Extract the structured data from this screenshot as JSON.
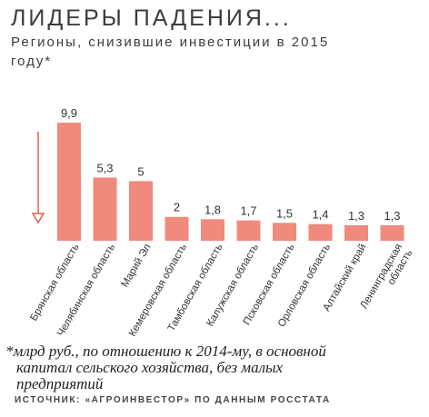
{
  "title": "ЛИДЕРЫ ПАДЕНИЯ...",
  "subtitle": "Регионы, снизившие инвестиции в 2015 году*",
  "footnote": {
    "line1": "*млрд руб., по отношению к 2014-му, в основной",
    "line2": "капитал  сельского хозяйства, без малых",
    "line3": "предприятий"
  },
  "source": "ИСТОЧНИК: «АГРОИНВЕСТОР» ПО ДАННЫМ РОССТАТА",
  "colors": {
    "bar": "#ef8a7c",
    "arrow": "#e0604e",
    "text": "#333333"
  },
  "chart_data": {
    "type": "bar",
    "categories": [
      "Брянская область",
      "Челябинская область",
      "Марий Эл",
      "Кемеровская область",
      "Тамбовская область",
      "Калужская область",
      "Псковская область",
      "Орловская область",
      "Алтайский край",
      "Ленинградская область"
    ],
    "value_labels": [
      "9,9",
      "5,3",
      "5",
      "2",
      "1,8",
      "1,7",
      "1,5",
      "1,4",
      "1,3",
      "1,3"
    ],
    "values": [
      9.9,
      5.3,
      5.0,
      2.0,
      1.8,
      1.7,
      1.5,
      1.4,
      1.3,
      1.3
    ],
    "ylim": [
      0,
      9.9
    ],
    "grid": false,
    "legend": "none"
  }
}
